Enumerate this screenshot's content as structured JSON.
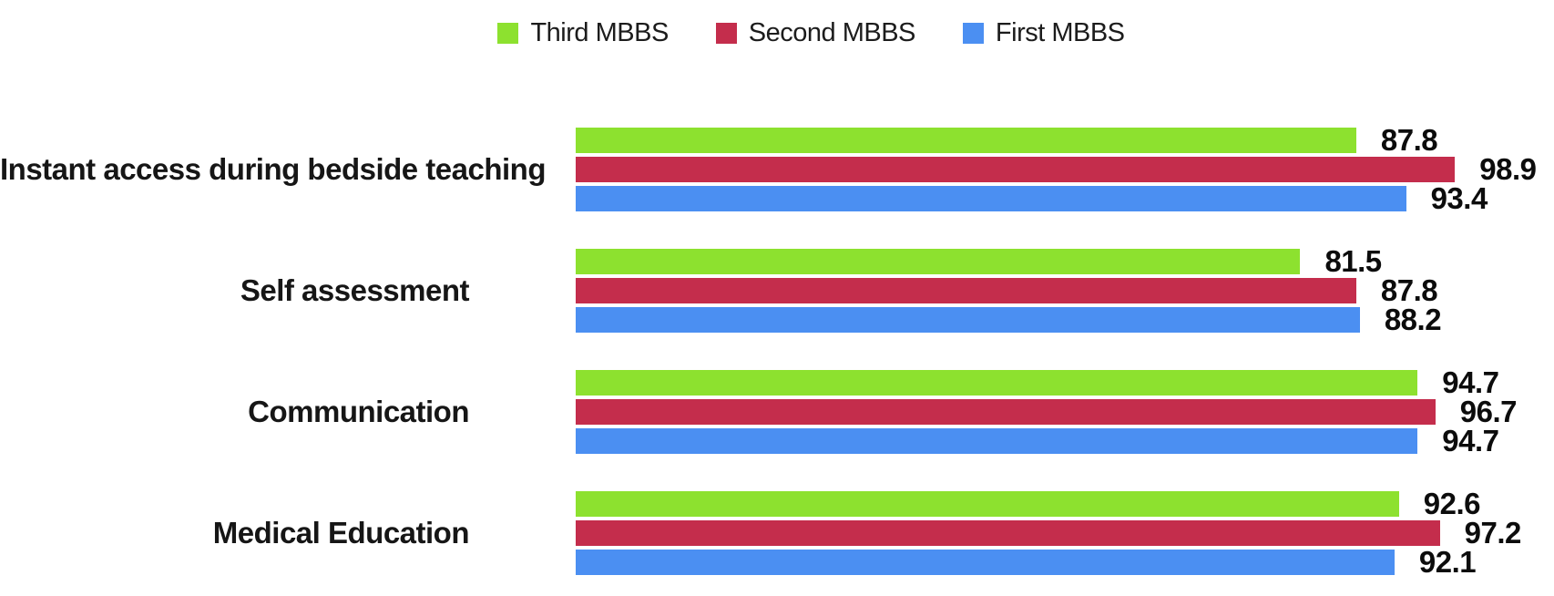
{
  "chart_data": {
    "type": "bar",
    "orientation": "horizontal",
    "title": "",
    "xlabel": "",
    "ylabel": "",
    "xlim": [
      0,
      100
    ],
    "grid": false,
    "legend_position": "top",
    "value_labels": true,
    "categories": [
      "Instant access during bedside teaching",
      "Self assessment",
      "Communication",
      "Medical Education"
    ],
    "series": [
      {
        "name": "Third MBBS",
        "color": "#8DE12F",
        "values": [
          87.8,
          81.5,
          94.7,
          92.6
        ]
      },
      {
        "name": "Second MBBS",
        "color": "#C42D4C",
        "values": [
          98.9,
          87.8,
          96.7,
          97.2
        ]
      },
      {
        "name": "First MBBS",
        "color": "#4B8FF2",
        "values": [
          93.4,
          88.2,
          94.7,
          92.1
        ]
      }
    ]
  },
  "colors": {
    "third_mbbs": "#8DE12F",
    "second_mbbs": "#C42D4C",
    "first_mbbs": "#4B8FF2",
    "label_text": "#161616",
    "background": "#FFFFFF"
  }
}
